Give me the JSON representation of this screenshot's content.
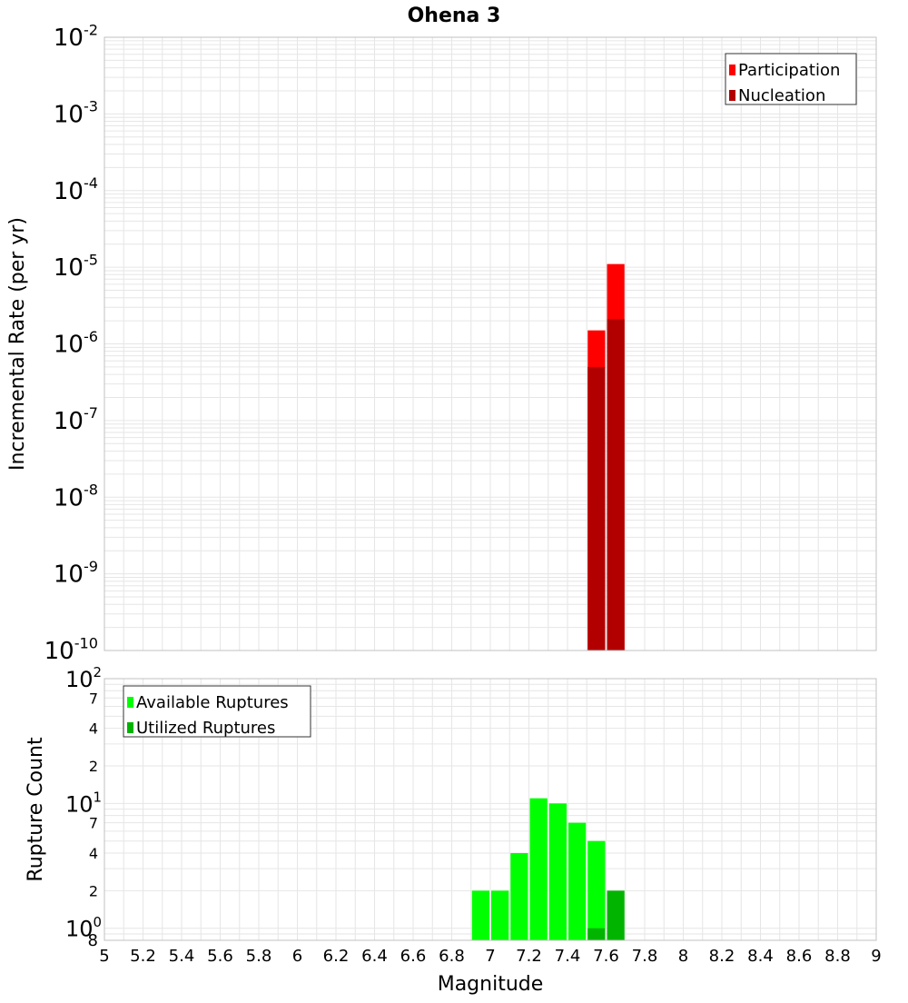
{
  "title": "Ohena 3",
  "colors": {
    "participation": "#ff0000",
    "nucleation": "#b20000",
    "available": "#00ff00",
    "utilized": "#00b400",
    "grid": "#e6e6e6",
    "frame": "#c0c0c0"
  },
  "chart_data": [
    {
      "type": "bar",
      "name": "rate",
      "title": "Ohena 3",
      "xlabel": "",
      "ylabel": "Incremental Rate (per yr)",
      "yscale": "log",
      "xlim": [
        5,
        9
      ],
      "ylim": [
        1e-10,
        0.01
      ],
      "y_ticks": [
        {
          "base": "10",
          "exp": "-2"
        },
        {
          "base": "10",
          "exp": "-3"
        },
        {
          "base": "10",
          "exp": "-4"
        },
        {
          "base": "10",
          "exp": "-5"
        },
        {
          "base": "10",
          "exp": "-6"
        },
        {
          "base": "10",
          "exp": "-7"
        },
        {
          "base": "10",
          "exp": "-8"
        },
        {
          "base": "10",
          "exp": "-9"
        },
        {
          "base": "10",
          "exp": "-10"
        }
      ],
      "legend_position": "top-right",
      "bin_width": 0.1,
      "series": [
        {
          "name": "Participation",
          "x": [
            7.55,
            7.65
          ],
          "values": [
            1.5e-06,
            1.1e-05
          ]
        },
        {
          "name": "Nucleation",
          "x": [
            7.55,
            7.65
          ],
          "values": [
            5e-07,
            2.1e-06
          ]
        }
      ],
      "grid": true
    },
    {
      "type": "bar",
      "name": "count",
      "xlabel": "Magnitude",
      "ylabel": "Rupture Count",
      "yscale": "log",
      "xlim": [
        5,
        9
      ],
      "ylim": [
        0.8,
        100
      ],
      "x_ticks": [
        "5",
        "5.2",
        "5.4",
        "5.6",
        "5.8",
        "6",
        "6.2",
        "6.4",
        "6.6",
        "6.8",
        "7",
        "7.2",
        "7.4",
        "7.6",
        "7.8",
        "8",
        "8.2",
        "8.4",
        "8.6",
        "8.8",
        "9"
      ],
      "y_major_ticks": [
        {
          "base": "10",
          "exp": "2"
        },
        {
          "base": "10",
          "exp": "1"
        },
        {
          "base": "10",
          "exp": "0"
        }
      ],
      "y_minor_ticks": [
        {
          "label": "7",
          "value": 70
        },
        {
          "label": "4",
          "value": 40
        },
        {
          "label": "2",
          "value": 20
        },
        {
          "label": "7",
          "value": 7
        },
        {
          "label": "4",
          "value": 4
        },
        {
          "label": "2",
          "value": 2
        }
      ],
      "y_bottom_label": "8",
      "legend_position": "top-left",
      "bin_width": 0.1,
      "series": [
        {
          "name": "Available Ruptures",
          "x": [
            6.95,
            7.05,
            7.15,
            7.25,
            7.35,
            7.45,
            7.55
          ],
          "values": [
            2,
            2,
            4,
            11,
            10,
            7,
            5
          ]
        },
        {
          "name": "Utilized Ruptures",
          "x": [
            7.55,
            7.65
          ],
          "values": [
            1,
            2
          ]
        }
      ],
      "grid": true
    }
  ]
}
